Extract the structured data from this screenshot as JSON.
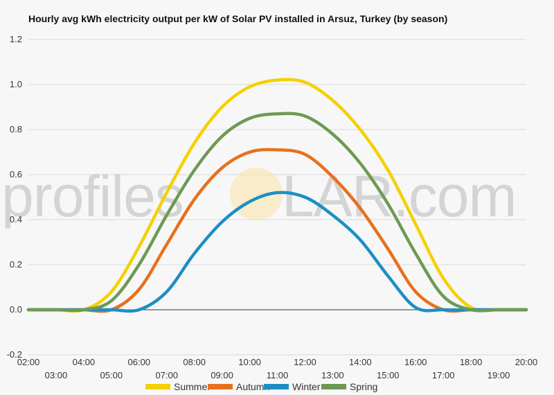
{
  "chart_data": {
    "type": "line",
    "title": "Hourly avg kWh electricity output per kW of Solar PV installed in Arsuz, Turkey (by season)",
    "xlabel": "",
    "ylabel": "",
    "ylim": [
      -0.2,
      1.2
    ],
    "yticks": [
      "-0.2",
      "0.0",
      "0.2",
      "0.4",
      "0.6",
      "0.8",
      "1.0",
      "1.2"
    ],
    "grid": true,
    "legend_position": "bottom",
    "categories": [
      "02:00",
      "03:00",
      "04:00",
      "05:00",
      "06:00",
      "07:00",
      "08:00",
      "09:00",
      "10:00",
      "11:00",
      "12:00",
      "13:00",
      "14:00",
      "15:00",
      "16:00",
      "17:00",
      "18:00",
      "19:00",
      "20:00"
    ],
    "series": [
      {
        "name": "Summer",
        "color": "#f5d000",
        "values": [
          0,
          0,
          0,
          0.08,
          0.28,
          0.52,
          0.74,
          0.9,
          0.99,
          1.02,
          1.01,
          0.93,
          0.8,
          0.62,
          0.38,
          0.14,
          0.01,
          0,
          0
        ]
      },
      {
        "name": "Autumn",
        "color": "#e8701c",
        "values": [
          0,
          0,
          0,
          0,
          0.09,
          0.29,
          0.49,
          0.63,
          0.7,
          0.71,
          0.69,
          0.59,
          0.45,
          0.27,
          0.08,
          0,
          0,
          0,
          0
        ]
      },
      {
        "name": "Winter",
        "color": "#1b8fc4",
        "values": [
          0,
          0,
          0,
          0,
          0,
          0.08,
          0.25,
          0.39,
          0.48,
          0.52,
          0.5,
          0.42,
          0.31,
          0.15,
          0.01,
          0,
          0,
          0,
          0
        ]
      },
      {
        "name": "Spring",
        "color": "#6d9a52",
        "values": [
          0,
          0,
          0,
          0.04,
          0.2,
          0.42,
          0.62,
          0.77,
          0.85,
          0.87,
          0.86,
          0.78,
          0.65,
          0.47,
          0.25,
          0.06,
          0,
          0,
          0
        ]
      }
    ]
  },
  "watermark": {
    "text_left": "profiles",
    "text_right": "LAR.com",
    "sun_color": "#fbe3a6"
  }
}
